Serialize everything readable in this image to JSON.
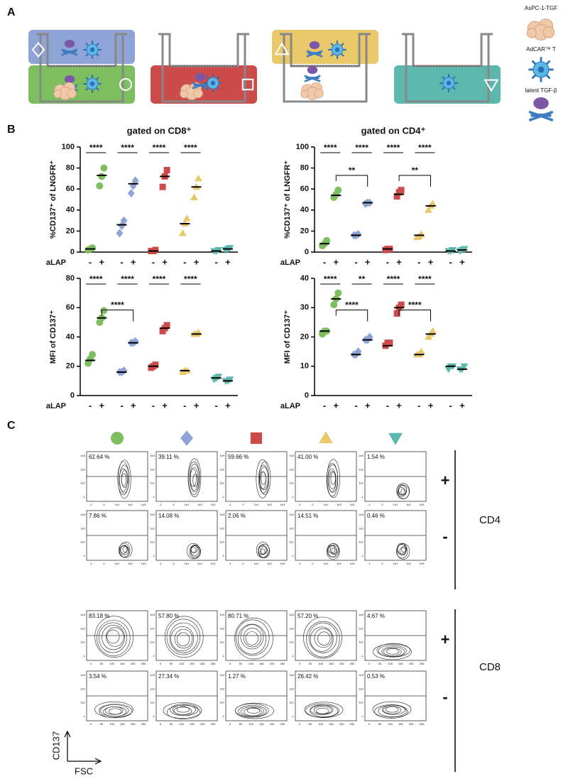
{
  "figure": {
    "panel_labels": [
      "A",
      "B",
      "C"
    ]
  },
  "panel_a": {
    "legend": [
      "AsPC-1-TGF",
      "AdCAR™ T",
      "latent TGF-β"
    ]
  },
  "chart_data": [
    {
      "type": "dot",
      "title": "gated on CD8⁺",
      "y_label": "%CD137⁺ of LNGFR⁺",
      "x_label": "aLAP",
      "ylim": [
        0,
        100
      ],
      "yticks": [
        0,
        20,
        40,
        60,
        80,
        100
      ],
      "groups": [
        {
          "category": "-",
          "color": "#7dbf5f",
          "marker": "circle",
          "values": [
            2,
            3,
            4
          ],
          "mean": 3
        },
        {
          "category": "+",
          "color": "#7dbf5f",
          "marker": "circle",
          "values": [
            63,
            72,
            80
          ],
          "mean": 73
        },
        {
          "category": "-",
          "color": "#8ea3d6",
          "marker": "diamond",
          "values": [
            18,
            25,
            30
          ],
          "mean": 26
        },
        {
          "category": "+",
          "color": "#8ea3d6",
          "marker": "diamond",
          "values": [
            56,
            63,
            68
          ],
          "mean": 65
        },
        {
          "category": "-",
          "color": "#cc4b4b",
          "marker": "square",
          "values": [
            1,
            1,
            2
          ],
          "mean": 1
        },
        {
          "category": "+",
          "color": "#cc4b4b",
          "marker": "square",
          "values": [
            62,
            72,
            78
          ],
          "mean": 72
        },
        {
          "category": "-",
          "color": "#e9c86a",
          "marker": "triangle",
          "values": [
            18,
            27,
            32
          ],
          "mean": 27
        },
        {
          "category": "+",
          "color": "#e9c86a",
          "marker": "triangle",
          "values": [
            52,
            62,
            70
          ],
          "mean": 62
        },
        {
          "category": "-",
          "color": "#5cb8ad",
          "marker": "triangle-down",
          "values": [
            1,
            1,
            2
          ],
          "mean": 1
        },
        {
          "category": "+",
          "color": "#5cb8ad",
          "marker": "triangle-down",
          "values": [
            2,
            3,
            4
          ],
          "mean": 3
        }
      ],
      "comparisons": [
        {
          "from": 0,
          "to": 1,
          "label": "****"
        },
        {
          "from": 2,
          "to": 3,
          "label": "****"
        },
        {
          "from": 4,
          "to": 5,
          "label": "****"
        },
        {
          "from": 6,
          "to": 7,
          "label": "****"
        }
      ]
    },
    {
      "type": "dot",
      "title": "gated on CD4⁺",
      "y_label": "%CD137⁺ of LNGFR⁺",
      "x_label": "aLAP",
      "ylim": [
        0,
        100
      ],
      "yticks": [
        0,
        20,
        40,
        60,
        80,
        100
      ],
      "groups": [
        {
          "category": "-",
          "color": "#7dbf5f",
          "marker": "circle",
          "values": [
            6,
            8,
            11
          ],
          "mean": 8
        },
        {
          "category": "+",
          "color": "#7dbf5f",
          "marker": "circle",
          "values": [
            52,
            55,
            59
          ],
          "mean": 54
        },
        {
          "category": "-",
          "color": "#8ea3d6",
          "marker": "diamond",
          "values": [
            16,
            16,
            17
          ],
          "mean": 16
        },
        {
          "category": "+",
          "color": "#8ea3d6",
          "marker": "diamond",
          "values": [
            46,
            47,
            47
          ],
          "mean": 47
        },
        {
          "category": "-",
          "color": "#cc4b4b",
          "marker": "square",
          "values": [
            2,
            3,
            3
          ],
          "mean": 3
        },
        {
          "category": "+",
          "color": "#cc4b4b",
          "marker": "square",
          "values": [
            53,
            57,
            59
          ],
          "mean": 55
        },
        {
          "category": "-",
          "color": "#e9c86a",
          "marker": "triangle",
          "values": [
            14,
            15,
            17
          ],
          "mean": 16
        },
        {
          "category": "+",
          "color": "#e9c86a",
          "marker": "triangle",
          "values": [
            40,
            44,
            46
          ],
          "mean": 44
        },
        {
          "category": "-",
          "color": "#5cb8ad",
          "marker": "triangle-down",
          "values": [
            1,
            1,
            2
          ],
          "mean": 1
        },
        {
          "category": "+",
          "color": "#5cb8ad",
          "marker": "triangle-down",
          "values": [
            1,
            2,
            3
          ],
          "mean": 2
        }
      ],
      "comparisons": [
        {
          "from": 0,
          "to": 1,
          "label": "****"
        },
        {
          "from": 2,
          "to": 3,
          "label": "****"
        },
        {
          "from": 4,
          "to": 5,
          "label": "****"
        },
        {
          "from": 6,
          "to": 7,
          "label": "****"
        },
        {
          "from": 1,
          "to": 3,
          "label": "**"
        },
        {
          "from": 5,
          "to": 7,
          "label": "**"
        }
      ]
    },
    {
      "type": "dot",
      "y_label": "MFI of CD137⁺",
      "x_label": "aLAP",
      "ylim": [
        0,
        80
      ],
      "yticks": [
        0,
        20,
        40,
        60,
        80
      ],
      "groups": [
        {
          "category": "-",
          "color": "#7dbf5f",
          "marker": "circle",
          "values": [
            22,
            25,
            28
          ],
          "mean": 24
        },
        {
          "category": "+",
          "color": "#7dbf5f",
          "marker": "circle",
          "values": [
            50,
            53,
            58
          ],
          "mean": 53
        },
        {
          "category": "-",
          "color": "#8ea3d6",
          "marker": "diamond",
          "values": [
            16,
            16,
            17
          ],
          "mean": 16
        },
        {
          "category": "+",
          "color": "#8ea3d6",
          "marker": "diamond",
          "values": [
            36,
            36,
            37
          ],
          "mean": 36
        },
        {
          "category": "-",
          "color": "#cc4b4b",
          "marker": "square",
          "values": [
            19,
            20,
            21
          ],
          "mean": 20
        },
        {
          "category": "+",
          "color": "#cc4b4b",
          "marker": "square",
          "values": [
            44,
            46,
            48
          ],
          "mean": 46
        },
        {
          "category": "-",
          "color": "#e9c86a",
          "marker": "triangle",
          "values": [
            16,
            17,
            17
          ],
          "mean": 17
        },
        {
          "category": "+",
          "color": "#e9c86a",
          "marker": "triangle",
          "values": [
            42,
            42,
            43
          ],
          "mean": 42
        },
        {
          "category": "-",
          "color": "#5cb8ad",
          "marker": "triangle-down",
          "values": [
            11,
            12,
            13
          ],
          "mean": 12
        },
        {
          "category": "+",
          "color": "#5cb8ad",
          "marker": "triangle-down",
          "values": [
            10,
            10,
            11
          ],
          "mean": 10
        }
      ],
      "comparisons": [
        {
          "from": 0,
          "to": 1,
          "label": "****"
        },
        {
          "from": 2,
          "to": 3,
          "label": "****"
        },
        {
          "from": 4,
          "to": 5,
          "label": "****"
        },
        {
          "from": 6,
          "to": 7,
          "label": "****"
        },
        {
          "from": 1,
          "to": 3,
          "label": "****"
        }
      ]
    },
    {
      "type": "dot",
      "y_label": "MFI of CD137⁺",
      "x_label": "aLAP",
      "ylim": [
        0,
        40
      ],
      "yticks": [
        0,
        10,
        20,
        30,
        40
      ],
      "groups": [
        {
          "category": "-",
          "color": "#7dbf5f",
          "marker": "circle",
          "values": [
            21,
            22,
            22
          ],
          "mean": 22
        },
        {
          "category": "+",
          "color": "#7dbf5f",
          "marker": "circle",
          "values": [
            31,
            33,
            35
          ],
          "mean": 33
        },
        {
          "category": "-",
          "color": "#8ea3d6",
          "marker": "diamond",
          "values": [
            14,
            14,
            15
          ],
          "mean": 14
        },
        {
          "category": "+",
          "color": "#8ea3d6",
          "marker": "diamond",
          "values": [
            19,
            19,
            20
          ],
          "mean": 19
        },
        {
          "category": "-",
          "color": "#cc4b4b",
          "marker": "square",
          "values": [
            17,
            18,
            18
          ],
          "mean": 17
        },
        {
          "category": "+",
          "color": "#cc4b4b",
          "marker": "square",
          "values": [
            28,
            30,
            31
          ],
          "mean": 30
        },
        {
          "category": "-",
          "color": "#e9c86a",
          "marker": "triangle",
          "values": [
            14,
            14,
            15
          ],
          "mean": 14
        },
        {
          "category": "+",
          "color": "#e9c86a",
          "marker": "triangle",
          "values": [
            20,
            21,
            22
          ],
          "mean": 21
        },
        {
          "category": "-",
          "color": "#5cb8ad",
          "marker": "triangle-down",
          "values": [
            9,
            10,
            10
          ],
          "mean": 10
        },
        {
          "category": "+",
          "color": "#5cb8ad",
          "marker": "triangle-down",
          "values": [
            9,
            9,
            10
          ],
          "mean": 9
        }
      ],
      "comparisons": [
        {
          "from": 0,
          "to": 1,
          "label": "****"
        },
        {
          "from": 2,
          "to": 3,
          "label": "**"
        },
        {
          "from": 4,
          "to": 5,
          "label": "****"
        },
        {
          "from": 6,
          "to": 7,
          "label": "****"
        },
        {
          "from": 1,
          "to": 3,
          "label": "****"
        },
        {
          "from": 5,
          "to": 7,
          "label": "****"
        }
      ]
    }
  ],
  "panel_c": {
    "markers": [
      {
        "color": "#7dbf5f",
        "marker": "circle"
      },
      {
        "color": "#8ea3d6",
        "marker": "diamond"
      },
      {
        "color": "#cc4b4b",
        "marker": "square"
      },
      {
        "color": "#e9c86a",
        "marker": "triangle"
      },
      {
        "color": "#5cb8ad",
        "marker": "triangle-down"
      }
    ],
    "y_ticks": [
      "1e3",
      "1e2",
      "1e1",
      "-1"
    ],
    "x_ticks_cd4": [
      "-1",
      "0",
      "1e1",
      "1e2",
      "1e3"
    ],
    "x_ticks_cd8": [
      "0",
      "50",
      "100",
      "150",
      "200",
      "250"
    ],
    "rows": [
      {
        "sign": "+",
        "values": [
          "62.64 %",
          "39.11 %",
          "59.66 %",
          "41.00 %",
          "1.54 %"
        ]
      },
      {
        "sign": "-",
        "values": [
          "7.86 %",
          "14.08 %",
          "2.06 %",
          "14.51 %",
          "0.46 %"
        ]
      },
      {
        "sign": "+",
        "values": [
          "83.18 %",
          "57.80 %",
          "80.71 %",
          "57.20 %",
          "4.67 %"
        ]
      },
      {
        "sign": "-",
        "values": [
          "3.54 %",
          "27.34 %",
          "1.27 %",
          "26.42 %",
          "0.53 %"
        ]
      }
    ],
    "groups": [
      "CD4",
      "CD8"
    ],
    "y_axis": "CD137",
    "x_axis": "FSC"
  }
}
